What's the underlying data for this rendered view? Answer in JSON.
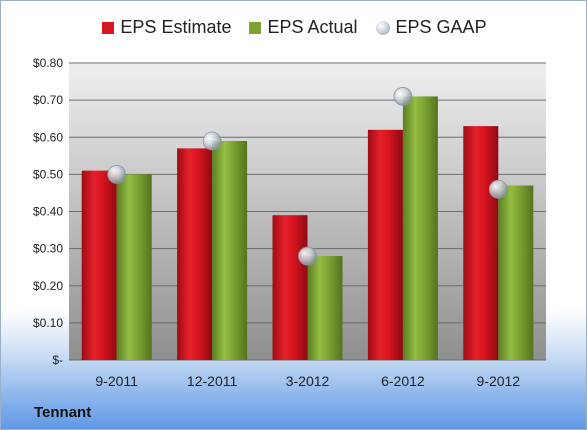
{
  "company": "Tennant",
  "colors": {
    "estimate": "#d8141f",
    "actual": "#7da433",
    "gaap": "#c4ccd4"
  },
  "chart_data": {
    "type": "bar",
    "categories": [
      "9-2011",
      "12-2011",
      "3-2012",
      "6-2012",
      "9-2012"
    ],
    "series": [
      {
        "name": "EPS Estimate",
        "values": [
          0.51,
          0.57,
          0.39,
          0.62,
          0.63
        ]
      },
      {
        "name": "EPS Actual",
        "values": [
          0.5,
          0.59,
          0.28,
          0.71,
          0.47
        ]
      },
      {
        "name": "EPS GAAP",
        "values": [
          0.5,
          0.59,
          0.28,
          0.71,
          0.46
        ]
      }
    ],
    "ylim": [
      0,
      0.8
    ],
    "yticks": [
      0,
      0.1,
      0.2,
      0.3,
      0.4,
      0.5,
      0.6,
      0.7,
      0.8
    ],
    "ytick_labels": [
      "$-",
      "$0.10",
      "$0.20",
      "$0.30",
      "$0.40",
      "$0.50",
      "$0.60",
      "$0.70",
      "$0.80"
    ],
    "grid": true,
    "legend": "top"
  }
}
